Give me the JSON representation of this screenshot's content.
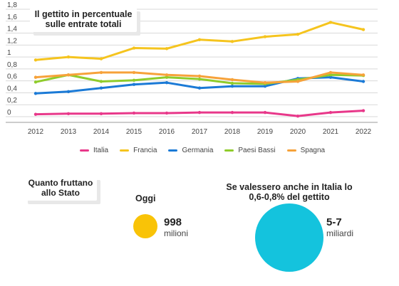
{
  "chart_data": {
    "type": "line",
    "title": "Il gettito in percentuale sulle entrate totali",
    "categories": [
      "2012",
      "2013",
      "2014",
      "2015",
      "2016",
      "2017",
      "2018",
      "2019",
      "2020",
      "2021",
      "2022"
    ],
    "y_ticks": [
      "0",
      "0,2",
      "0,4",
      "0,6",
      "0,8",
      "1",
      "1,2",
      "1,4",
      "1,6",
      "1,8"
    ],
    "ylim": [
      0,
      1.8
    ],
    "grid": true,
    "legend_position": "bottom",
    "series": [
      {
        "name": "Italia",
        "color": "#e8388a",
        "values": [
          0.04,
          0.05,
          0.05,
          0.06,
          0.06,
          0.07,
          0.07,
          0.07,
          0.01,
          0.07,
          0.1
        ]
      },
      {
        "name": "Francia",
        "color": "#f5c41e",
        "values": [
          0.95,
          1.0,
          0.97,
          1.15,
          1.14,
          1.29,
          1.26,
          1.34,
          1.38,
          1.58,
          1.46
        ]
      },
      {
        "name": "Germania",
        "color": "#1b7ad6",
        "values": [
          0.39,
          0.42,
          0.48,
          0.54,
          0.57,
          0.48,
          0.51,
          0.51,
          0.64,
          0.66,
          0.59
        ]
      },
      {
        "name": "Paesi Bassi",
        "color": "#8fcc2b",
        "values": [
          0.58,
          0.7,
          0.59,
          0.61,
          0.66,
          0.63,
          0.56,
          0.55,
          0.62,
          0.7,
          0.69
        ]
      },
      {
        "name": "Spagna",
        "color": "#f6a23a",
        "values": [
          0.66,
          0.7,
          0.74,
          0.74,
          0.7,
          0.68,
          0.62,
          0.57,
          0.59,
          0.74,
          0.7
        ]
      }
    ]
  },
  "summary": {
    "heading": "Quanto fruttano allo Stato",
    "today_label": "Oggi",
    "today_value": "998",
    "today_unit": "milioni",
    "today_color": "#f9c307",
    "hypothetical_label": "Se valessero anche in Italia lo 0,6-0,8% del gettito",
    "hypothetical_value": "5-7",
    "hypothetical_unit": "miliardi",
    "hypothetical_color": "#14c3dd"
  }
}
